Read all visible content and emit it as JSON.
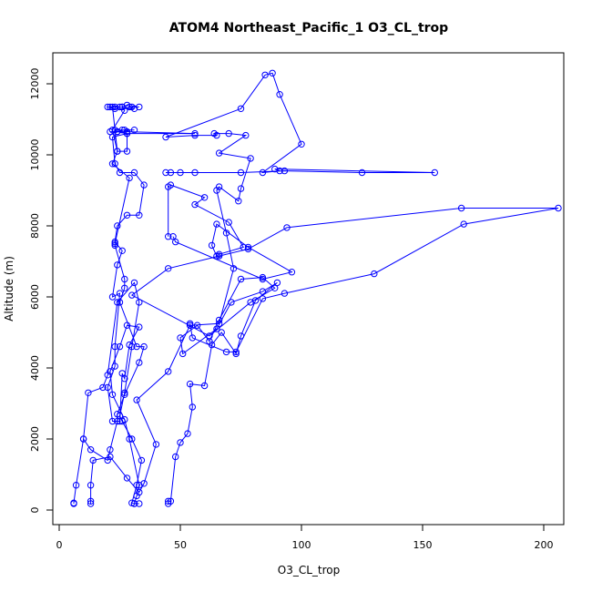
{
  "chart_data": {
    "type": "line",
    "title": "ATOM4 Northeast_Pacific_1 O3_CL_trop",
    "xlabel": "O3_CL_trop",
    "ylabel": "Altitude (m)",
    "xlim": [
      0,
      210
    ],
    "ylim": [
      0,
      12700
    ],
    "x_ticks": [
      0,
      50,
      100,
      150,
      200
    ],
    "y_ticks": [
      0,
      2000,
      4000,
      6000,
      8000,
      10000,
      12000
    ],
    "marker": "open-circle",
    "color": "#0000ff",
    "grid": false,
    "segments": [
      {
        "points": [
          [
            6,
            180
          ],
          [
            6,
            200
          ],
          [
            7,
            700
          ],
          [
            10,
            2000
          ],
          [
            12,
            3300
          ],
          [
            18,
            3450
          ],
          [
            20,
            3800
          ],
          [
            24,
            5850
          ],
          [
            31,
            6400
          ],
          [
            33,
            5850
          ],
          [
            30,
            4600
          ],
          [
            27,
            3300
          ],
          [
            25,
            2650
          ],
          [
            26,
            2500
          ],
          [
            30,
            2000
          ],
          [
            34,
            1400
          ],
          [
            32,
            700
          ],
          [
            30,
            200
          ],
          [
            31,
            180
          ],
          [
            33,
            180
          ]
        ]
      },
      {
        "points": [
          [
            13,
            180
          ],
          [
            13,
            250
          ],
          [
            13,
            700
          ],
          [
            14,
            1400
          ],
          [
            21,
            1500
          ],
          [
            28,
            900
          ],
          [
            33,
            500
          ],
          [
            35,
            750
          ],
          [
            40,
            1850
          ],
          [
            32,
            3100
          ],
          [
            45,
            3900
          ],
          [
            54,
            5200
          ],
          [
            66,
            5250
          ],
          [
            72,
            6800
          ],
          [
            69,
            7800
          ],
          [
            65,
            9000
          ],
          [
            66,
            9100
          ],
          [
            74,
            8700
          ],
          [
            75,
            9050
          ],
          [
            79,
            9900
          ],
          [
            66,
            10050
          ],
          [
            77,
            10550
          ],
          [
            70,
            10600
          ],
          [
            64,
            10600
          ],
          [
            65,
            10550
          ],
          [
            56,
            10550
          ],
          [
            44,
            10500
          ],
          [
            75,
            11300
          ],
          [
            85,
            12250
          ],
          [
            88,
            12300
          ],
          [
            91,
            11700
          ],
          [
            100,
            10300
          ],
          [
            84,
            9500
          ],
          [
            91,
            9550
          ],
          [
            89,
            9600
          ],
          [
            155,
            9500
          ],
          [
            125,
            9500
          ],
          [
            93,
            9550
          ],
          [
            75,
            9500
          ],
          [
            56,
            9500
          ],
          [
            50,
            9500
          ],
          [
            46,
            9500
          ],
          [
            44,
            9500
          ]
        ]
      },
      {
        "points": [
          [
            31,
            180
          ],
          [
            32,
            400
          ],
          [
            33,
            700
          ],
          [
            29,
            2000
          ],
          [
            27,
            2550
          ],
          [
            22,
            3250
          ],
          [
            21,
            3900
          ],
          [
            25,
            4600
          ],
          [
            28,
            5200
          ],
          [
            33,
            5150
          ],
          [
            29,
            4650
          ],
          [
            27,
            3700
          ],
          [
            26,
            3850
          ],
          [
            25,
            2500
          ],
          [
            22,
            2500
          ],
          [
            20,
            3450
          ],
          [
            23,
            4050
          ],
          [
            23,
            4600
          ],
          [
            25,
            6100
          ],
          [
            22,
            6000
          ],
          [
            24,
            6900
          ],
          [
            26,
            7300
          ],
          [
            23,
            7550
          ],
          [
            24,
            8000
          ],
          [
            28,
            8300
          ],
          [
            33,
            8300
          ],
          [
            35,
            9150
          ],
          [
            31,
            9500
          ],
          [
            25,
            9500
          ],
          [
            23,
            9750
          ],
          [
            22,
            10500
          ],
          [
            28,
            10600
          ],
          [
            24,
            10650
          ],
          [
            27,
            10700
          ],
          [
            26,
            10700
          ],
          [
            31,
            10700
          ],
          [
            23,
            10700
          ],
          [
            24,
            10650
          ],
          [
            21,
            10650
          ],
          [
            28,
            10650
          ],
          [
            56,
            10600
          ],
          [
            28,
            10600
          ],
          [
            28,
            10100
          ],
          [
            24,
            10100
          ],
          [
            22,
            11350
          ],
          [
            20,
            11350
          ],
          [
            23,
            11300
          ],
          [
            31,
            11300
          ],
          [
            29,
            11350
          ],
          [
            33,
            11350
          ],
          [
            30,
            11350
          ],
          [
            28,
            11400
          ],
          [
            26,
            11350
          ],
          [
            25,
            11350
          ],
          [
            23,
            11350
          ],
          [
            21,
            11350
          ]
        ]
      },
      {
        "points": [
          [
            26,
            11350
          ],
          [
            27,
            11250
          ],
          [
            22,
            10700
          ],
          [
            24,
            10100
          ],
          [
            22,
            9750
          ],
          [
            29,
            9350
          ],
          [
            23,
            7500
          ],
          [
            23,
            7450
          ],
          [
            27,
            6500
          ],
          [
            27,
            6250
          ],
          [
            25,
            5850
          ],
          [
            32,
            4600
          ],
          [
            35,
            4600
          ],
          [
            33,
            4150
          ],
          [
            27,
            3250
          ],
          [
            24,
            2700
          ],
          [
            24,
            2500
          ],
          [
            21,
            1700
          ],
          [
            20,
            1400
          ],
          [
            13,
            1700
          ],
          [
            10,
            2000
          ]
        ]
      },
      {
        "points": [
          [
            45,
            180
          ],
          [
            45,
            250
          ],
          [
            46,
            250
          ],
          [
            48,
            1500
          ],
          [
            50,
            1900
          ],
          [
            53,
            2150
          ],
          [
            55,
            2900
          ],
          [
            54,
            3550
          ],
          [
            60,
            3500
          ],
          [
            63,
            4650
          ],
          [
            67,
            5000
          ],
          [
            73,
            4400
          ],
          [
            75,
            4900
          ],
          [
            81,
            5900
          ],
          [
            90,
            6400
          ],
          [
            84,
            6150
          ],
          [
            71,
            5850
          ],
          [
            65,
            5100
          ],
          [
            51,
            4400
          ],
          [
            50,
            4850
          ],
          [
            57,
            5200
          ],
          [
            62,
            4750
          ],
          [
            66,
            5350
          ],
          [
            75,
            6500
          ],
          [
            84,
            6550
          ],
          [
            89,
            6250
          ],
          [
            79,
            5850
          ],
          [
            62,
            4900
          ],
          [
            30,
            6050
          ],
          [
            45,
            6800
          ],
          [
            66,
            7150
          ],
          [
            78,
            7350
          ],
          [
            94,
            7950
          ],
          [
            166,
            8500
          ],
          [
            206,
            8500
          ],
          [
            167,
            8050
          ],
          [
            130,
            6650
          ],
          [
            93,
            6100
          ],
          [
            84,
            5950
          ],
          [
            73,
            4450
          ],
          [
            69,
            4450
          ],
          [
            55,
            4850
          ],
          [
            54,
            5250
          ],
          [
            54,
            5200
          ]
        ]
      },
      {
        "points": [
          [
            45,
            7700
          ],
          [
            45,
            9100
          ],
          [
            46,
            9150
          ],
          [
            60,
            8800
          ],
          [
            56,
            8600
          ],
          [
            70,
            8100
          ],
          [
            76,
            7400
          ],
          [
            66,
            7200
          ],
          [
            65,
            7150
          ],
          [
            63,
            7450
          ],
          [
            65,
            8050
          ],
          [
            78,
            7400
          ],
          [
            96,
            6700
          ],
          [
            84,
            6500
          ],
          [
            48,
            7550
          ],
          [
            47,
            7700
          ]
        ]
      }
    ]
  }
}
